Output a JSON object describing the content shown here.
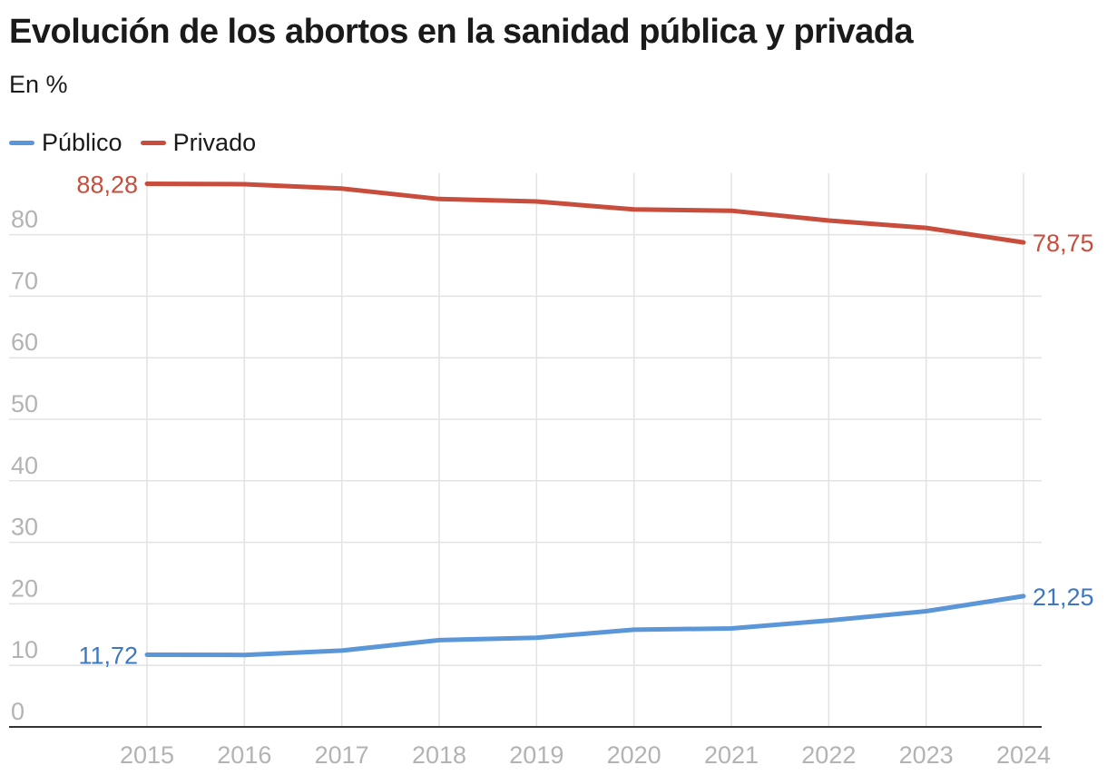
{
  "header": {
    "title": "Evolución de los abortos en la sanidad pública y privada",
    "subtitle": "En %"
  },
  "legend": [
    {
      "label": "Público",
      "color": "#5b96d9"
    },
    {
      "label": "Privado",
      "color": "#c94d3c"
    }
  ],
  "chart_data": {
    "type": "line",
    "title": "Evolución de los abortos en la sanidad pública y privada",
    "subtitle": "En %",
    "x": [
      "2015",
      "2016",
      "2017",
      "2018",
      "2019",
      "2020",
      "2021",
      "2022",
      "2023",
      "2024"
    ],
    "series": [
      {
        "name": "Público",
        "color": "#5b96d9",
        "label_color": "#3c78c0",
        "values": [
          11.72,
          11.7,
          12.4,
          14.1,
          14.5,
          15.8,
          16.0,
          17.3,
          18.8,
          21.25
        ],
        "start_label": "11,72",
        "end_label": "21,25"
      },
      {
        "name": "Privado",
        "color": "#c94d3c",
        "label_color": "#c94d3c",
        "values": [
          88.28,
          88.2,
          87.5,
          85.8,
          85.4,
          84.1,
          83.9,
          82.3,
          81.1,
          78.75
        ],
        "start_label": "88,28",
        "end_label": "78,75"
      }
    ],
    "yticks": [
      "0",
      "10",
      "20",
      "30",
      "40",
      "50",
      "60",
      "70",
      "80"
    ],
    "ytick_values": [
      0,
      10,
      20,
      30,
      40,
      50,
      60,
      70,
      80
    ],
    "ylim": [
      0,
      90
    ],
    "xlabel": "",
    "ylabel": "",
    "grid": true,
    "legend_position": "top-left"
  }
}
